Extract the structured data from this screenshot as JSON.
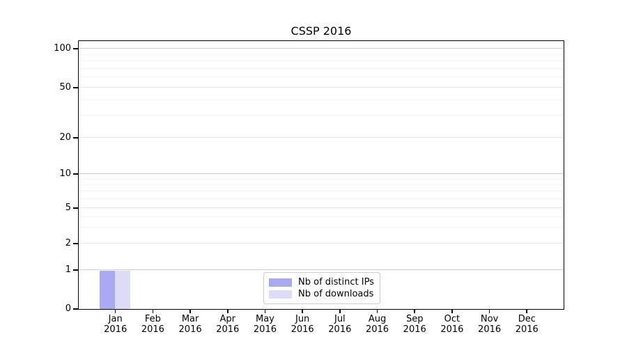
{
  "chart_data": {
    "type": "bar",
    "title": "CSSP 2016",
    "x_categories": [
      "Jan",
      "Feb",
      "Mar",
      "Apr",
      "May",
      "Jun",
      "Jul",
      "Aug",
      "Sep",
      "Oct",
      "Nov",
      "Dec"
    ],
    "x_year_label": "2016",
    "y_ticks": [
      100,
      50,
      20,
      10,
      5,
      2,
      1,
      0
    ],
    "y_minor_gridline_values": [
      90,
      80,
      70,
      60,
      40,
      30,
      9,
      8,
      7,
      6,
      4,
      3
    ],
    "y_scale": "log above 1, linear 0-1",
    "ylim": [
      0,
      115
    ],
    "grid": "horizontal gridlines on",
    "legend_position": "bottom center inside plot",
    "series": [
      {
        "name": "Nb of distinct IPs",
        "color": "#a9a9f3",
        "values": [
          1,
          0,
          0,
          0,
          0,
          0,
          0,
          0,
          0,
          0,
          0,
          0
        ]
      },
      {
        "name": "Nb of downloads",
        "color": "#dcdcf8",
        "values": [
          1,
          0,
          0,
          0,
          0,
          0,
          0,
          0,
          0,
          0,
          0,
          0
        ]
      }
    ]
  }
}
